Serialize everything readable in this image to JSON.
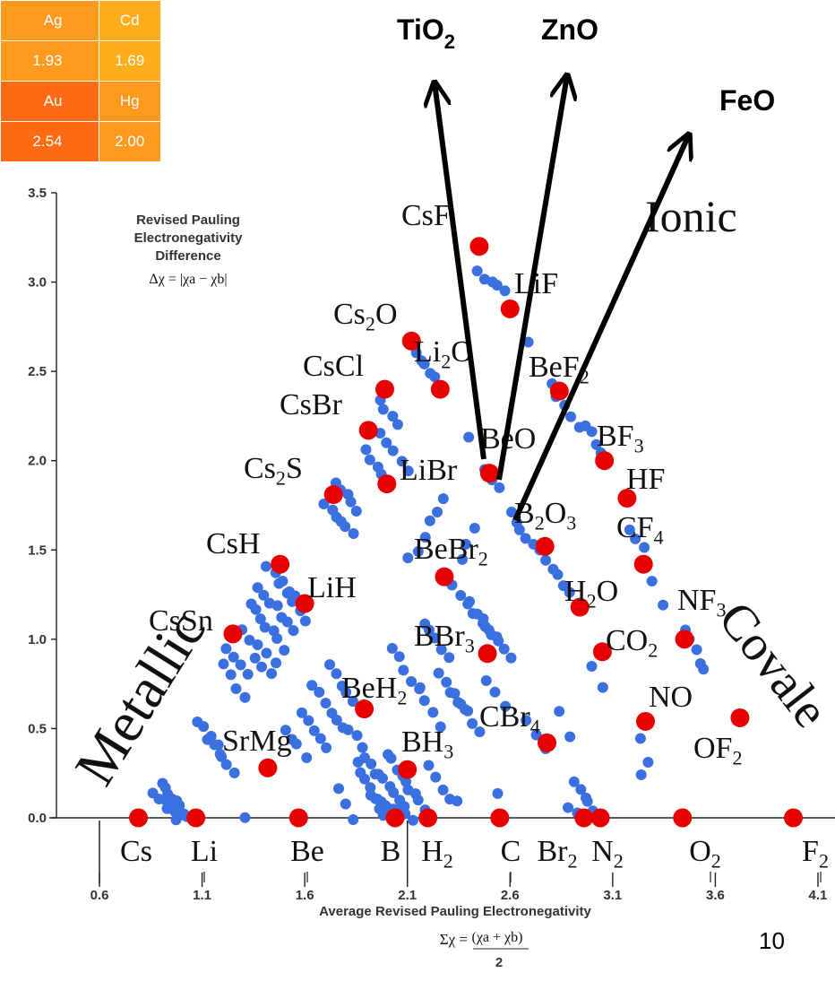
{
  "element_table": {
    "rows": [
      [
        {
          "text": "Ag",
          "bg": "#ff9a1f"
        },
        {
          "text": "Cd",
          "bg": "#ffad1c"
        }
      ],
      [
        {
          "text": "1.93",
          "bg": "#ff9a1f"
        },
        {
          "text": "1.69",
          "bg": "#ffad1c"
        }
      ],
      [
        {
          "text": "Au",
          "bg": "#ff6a12"
        },
        {
          "text": "Hg",
          "bg": "#ff9a1f"
        }
      ],
      [
        {
          "text": "2.54",
          "bg": "#ff6a12"
        },
        {
          "text": "2.00",
          "bg": "#ff9a1f"
        }
      ]
    ]
  },
  "oxides": [
    "TiO",
    "2",
    "ZnO",
    "FeO"
  ],
  "page_number": "10",
  "colors": {
    "highlight": "#e60000",
    "dots": "#3a6fe0",
    "ionic": "#f0961e",
    "metallic": "#e02020",
    "covalent": "#1e90e0",
    "arrow": "#000000"
  },
  "chart_data": {
    "type": "scatter",
    "xlim": [
      0.6,
      4.1
    ],
    "ylim": [
      0.0,
      3.5
    ],
    "x_ticks": [
      "0.6",
      "1.1",
      "1.6",
      "2.1",
      "2.6",
      "3.1",
      "3.6",
      "4.1"
    ],
    "y_ticks": [
      "0.0",
      "0.5",
      "1.0",
      "1.5",
      "2.0",
      "2.5",
      "3.0",
      "3.5"
    ],
    "xlabel": "Average Revised Pauling Electronegativity",
    "xformula": {
      "lhs": "Σχ =",
      "num": "(χa + χb)",
      "den": "2"
    },
    "annotation": {
      "lines": [
        "Revised Pauling",
        "Electronegativity",
        "Difference"
      ],
      "formula": "Δχ =  |χa − χb|"
    },
    "regions": {
      "ionic": "Ionic",
      "metallic": "Metallic",
      "covalent": "Covale"
    },
    "highlight_points": [
      {
        "label": "CsF",
        "x": 2.45,
        "y": 3.2
      },
      {
        "label": "LiF",
        "x": 2.6,
        "y": 2.85
      },
      {
        "label": "Cs2O",
        "x": 2.12,
        "y": 2.67
      },
      {
        "label": "CsCl",
        "x": 1.99,
        "y": 2.4
      },
      {
        "label": "Li2O",
        "x": 2.26,
        "y": 2.4
      },
      {
        "label": "BeF2",
        "x": 2.84,
        "y": 2.39
      },
      {
        "label": "CsBr",
        "x": 1.91,
        "y": 2.17
      },
      {
        "label": "BF3",
        "x": 3.06,
        "y": 2.0
      },
      {
        "label": "BeO",
        "x": 2.5,
        "y": 1.93
      },
      {
        "label": "LiBr",
        "x": 2.0,
        "y": 1.87
      },
      {
        "label": "HF",
        "x": 3.17,
        "y": 1.79
      },
      {
        "label": "Cs2S",
        "x": 1.74,
        "y": 1.81
      },
      {
        "label": "B2O3",
        "x": 2.77,
        "y": 1.52
      },
      {
        "label": "CF4",
        "x": 3.25,
        "y": 1.42
      },
      {
        "label": "CsH",
        "x": 1.48,
        "y": 1.42
      },
      {
        "label": "BeBr2",
        "x": 2.28,
        "y": 1.35
      },
      {
        "label": "LiH",
        "x": 1.6,
        "y": 1.2
      },
      {
        "label": "H2O",
        "x": 2.94,
        "y": 1.18
      },
      {
        "label": "CsSn",
        "x": 1.25,
        "y": 1.03
      },
      {
        "label": "NF3",
        "x": 3.45,
        "y": 1.0
      },
      {
        "label": "BBr3",
        "x": 2.49,
        "y": 0.92
      },
      {
        "label": "CO2",
        "x": 3.05,
        "y": 0.93
      },
      {
        "label": "BeH2",
        "x": 1.89,
        "y": 0.61
      },
      {
        "label": "OF2",
        "x": 3.72,
        "y": 0.56
      },
      {
        "label": "NO",
        "x": 3.26,
        "y": 0.54
      },
      {
        "label": "CBr4",
        "x": 2.78,
        "y": 0.42
      },
      {
        "label": "SrMg",
        "x": 1.42,
        "y": 0.28
      },
      {
        "label": "BH3",
        "x": 2.1,
        "y": 0.27
      },
      {
        "label": "Cs",
        "x": 0.79,
        "y": 0.0
      },
      {
        "label": "Li",
        "x": 1.07,
        "y": 0.0
      },
      {
        "label": "Be",
        "x": 1.57,
        "y": 0.0
      },
      {
        "label": "B",
        "x": 2.04,
        "y": 0.0
      },
      {
        "label": "H2",
        "x": 2.2,
        "y": 0.0
      },
      {
        "label": "C",
        "x": 2.55,
        "y": 0.0
      },
      {
        "label": "Br2",
        "x": 2.96,
        "y": 0.0
      },
      {
        "label": "N2",
        "x": 3.04,
        "y": 0.0
      },
      {
        "label": "O2",
        "x": 3.44,
        "y": 0.0
      },
      {
        "label": "F2",
        "x": 3.98,
        "y": 0.0
      }
    ],
    "data_clusters": [
      {
        "x0": 2.45,
        "y0": 3.05,
        "x1": 2.57,
        "y1": 2.95,
        "n": 5
      },
      {
        "x0": 2.14,
        "y0": 2.6,
        "x1": 2.23,
        "y1": 2.47,
        "n": 5
      },
      {
        "x0": 1.96,
        "y0": 2.33,
        "x1": 2.05,
        "y1": 2.2,
        "n": 4
      },
      {
        "x0": 1.89,
        "y0": 2.05,
        "x1": 1.98,
        "y1": 1.93,
        "n": 4
      },
      {
        "x0": 2.69,
        "y0": 2.67,
        "x1": 2.69,
        "y1": 2.67,
        "n": 1
      },
      {
        "x0": 2.39,
        "y0": 2.13,
        "x1": 2.39,
        "y1": 2.13,
        "n": 1
      },
      {
        "x0": 2.8,
        "y0": 2.42,
        "x1": 2.93,
        "y1": 2.2,
        "n": 5
      },
      {
        "x0": 2.97,
        "y0": 2.2,
        "x1": 3.07,
        "y1": 2.0,
        "n": 5
      },
      {
        "x0": 2.48,
        "y0": 1.95,
        "x1": 2.54,
        "y1": 1.85,
        "n": 3
      },
      {
        "x0": 1.96,
        "y0": 2.15,
        "x1": 2.1,
        "y1": 1.95,
        "n": 5
      },
      {
        "x0": 1.75,
        "y0": 1.88,
        "x1": 1.86,
        "y1": 1.72,
        "n": 5
      },
      {
        "x0": 1.7,
        "y0": 1.77,
        "x1": 1.83,
        "y1": 1.58,
        "n": 6
      },
      {
        "x0": 2.6,
        "y0": 1.7,
        "x1": 2.74,
        "y1": 1.5,
        "n": 6
      },
      {
        "x0": 2.77,
        "y0": 1.45,
        "x1": 2.9,
        "y1": 1.25,
        "n": 5
      },
      {
        "x0": 3.18,
        "y0": 1.6,
        "x1": 3.26,
        "y1": 1.5,
        "n": 3
      },
      {
        "x0": 3.29,
        "y0": 1.32,
        "x1": 3.35,
        "y1": 1.2,
        "n": 2
      },
      {
        "x0": 3.46,
        "y0": 1.05,
        "x1": 3.55,
        "y1": 0.82,
        "n": 5
      },
      {
        "x0": 2.11,
        "y0": 1.45,
        "x1": 2.18,
        "y1": 1.56,
        "n": 3
      },
      {
        "x0": 2.2,
        "y0": 1.65,
        "x1": 2.28,
        "y1": 1.78,
        "n": 3
      },
      {
        "x0": 2.36,
        "y0": 1.45,
        "x1": 2.42,
        "y1": 1.62,
        "n": 3
      },
      {
        "x0": 2.32,
        "y0": 1.3,
        "x1": 2.46,
        "y1": 1.1,
        "n": 5
      },
      {
        "x0": 2.4,
        "y0": 1.2,
        "x1": 2.53,
        "y1": 1.0,
        "n": 5
      },
      {
        "x0": 2.48,
        "y0": 1.08,
        "x1": 2.6,
        "y1": 0.9,
        "n": 5
      },
      {
        "x0": 2.18,
        "y0": 1.1,
        "x1": 2.3,
        "y1": 0.9,
        "n": 5
      },
      {
        "x0": 1.42,
        "y0": 1.4,
        "x1": 1.58,
        "y1": 1.2,
        "n": 6
      },
      {
        "x0": 1.38,
        "y0": 1.3,
        "x1": 1.55,
        "y1": 1.05,
        "n": 7
      },
      {
        "x0": 1.33,
        "y0": 1.2,
        "x1": 1.5,
        "y1": 0.95,
        "n": 7
      },
      {
        "x0": 1.3,
        "y0": 1.05,
        "x1": 1.45,
        "y1": 0.88,
        "n": 5
      },
      {
        "x0": 1.36,
        "y0": 0.9,
        "x1": 1.44,
        "y1": 0.82,
        "n": 3
      },
      {
        "x0": 1.48,
        "y0": 1.3,
        "x1": 1.6,
        "y1": 1.1,
        "n": 5
      },
      {
        "x0": 1.22,
        "y0": 0.95,
        "x1": 1.32,
        "y1": 0.8,
        "n": 4
      },
      {
        "x0": 1.2,
        "y0": 0.85,
        "x1": 1.3,
        "y1": 0.66,
        "n": 4
      },
      {
        "x0": 1.08,
        "y0": 0.55,
        "x1": 1.2,
        "y1": 0.35,
        "n": 5
      },
      {
        "x0": 1.12,
        "y0": 0.45,
        "x1": 1.25,
        "y1": 0.25,
        "n": 5
      },
      {
        "x0": 0.9,
        "y0": 0.2,
        "x1": 1.02,
        "y1": 0.0,
        "n": 8
      },
      {
        "x0": 0.87,
        "y0": 0.15,
        "x1": 0.98,
        "y1": 0.0,
        "n": 6
      },
      {
        "x0": 0.96,
        "y0": 0.1,
        "x1": 1.03,
        "y1": 0.0,
        "n": 4
      },
      {
        "x0": 1.3,
        "y0": 0.0,
        "x1": 1.3,
        "y1": 0.0,
        "n": 1
      },
      {
        "x0": 1.72,
        "y0": 0.85,
        "x1": 1.84,
        "y1": 0.65,
        "n": 5
      },
      {
        "x0": 1.64,
        "y0": 0.75,
        "x1": 1.78,
        "y1": 0.5,
        "n": 6
      },
      {
        "x0": 1.58,
        "y0": 0.6,
        "x1": 1.7,
        "y1": 0.38,
        "n": 5
      },
      {
        "x0": 1.5,
        "y0": 0.5,
        "x1": 1.6,
        "y1": 0.35,
        "n": 4
      },
      {
        "x0": 1.82,
        "y0": 0.5,
        "x1": 1.95,
        "y1": 0.25,
        "n": 6
      },
      {
        "x0": 1.86,
        "y0": 0.32,
        "x1": 1.98,
        "y1": 0.0,
        "n": 7
      },
      {
        "x0": 1.76,
        "y0": 0.15,
        "x1": 1.83,
        "y1": 0.0,
        "n": 3
      },
      {
        "x0": 1.93,
        "y0": 0.12,
        "x1": 2.12,
        "y1": 0.0,
        "n": 10
      },
      {
        "x0": 2.0,
        "y0": 0.36,
        "x1": 2.18,
        "y1": 0.05,
        "n": 9
      },
      {
        "x0": 1.96,
        "y0": 0.25,
        "x1": 2.08,
        "y1": 0.05,
        "n": 6
      },
      {
        "x0": 2.2,
        "y0": 0.3,
        "x1": 2.3,
        "y1": 0.1,
        "n": 4
      },
      {
        "x0": 2.02,
        "y0": 0.95,
        "x1": 2.16,
        "y1": 0.72,
        "n": 5
      },
      {
        "x0": 2.25,
        "y0": 0.8,
        "x1": 2.38,
        "y1": 0.6,
        "n": 5
      },
      {
        "x0": 2.33,
        "y0": 0.7,
        "x1": 2.45,
        "y1": 0.48,
        "n": 5
      },
      {
        "x0": 2.15,
        "y0": 0.72,
        "x1": 2.26,
        "y1": 0.52,
        "n": 4
      },
      {
        "x0": 2.49,
        "y0": 0.78,
        "x1": 2.57,
        "y1": 0.62,
        "n": 3
      },
      {
        "x0": 2.68,
        "y0": 0.55,
        "x1": 2.78,
        "y1": 0.4,
        "n": 3
      },
      {
        "x0": 2.84,
        "y0": 0.6,
        "x1": 2.9,
        "y1": 0.45,
        "n": 2
      },
      {
        "x0": 3.0,
        "y0": 0.85,
        "x1": 3.06,
        "y1": 0.72,
        "n": 2
      },
      {
        "x0": 3.24,
        "y0": 0.45,
        "x1": 3.28,
        "y1": 0.32,
        "n": 2
      },
      {
        "x0": 3.24,
        "y0": 0.25,
        "x1": 3.24,
        "y1": 0.25,
        "n": 1
      },
      {
        "x0": 2.91,
        "y0": 0.2,
        "x1": 3.0,
        "y1": 0.05,
        "n": 4
      },
      {
        "x0": 2.88,
        "y0": 0.05,
        "x1": 2.96,
        "y1": 0.0,
        "n": 3
      },
      {
        "x0": 2.53,
        "y0": 0.15,
        "x1": 2.53,
        "y1": 0.15,
        "n": 1
      },
      {
        "x0": 2.35,
        "y0": 0.1,
        "x1": 2.35,
        "y1": 0.1,
        "n": 1
      },
      {
        "x0": 2.97,
        "y0": 0.08,
        "x1": 3.02,
        "y1": 0.0,
        "n": 2
      }
    ]
  }
}
